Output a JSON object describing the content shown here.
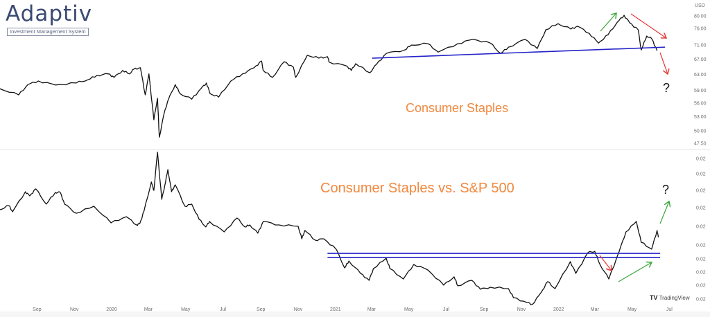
{
  "brand": {
    "name": "Adaptiv",
    "tagline": "Investment Management System"
  },
  "watermark": "TradingView",
  "colors": {
    "price_line": "#111111",
    "support_line": "#2323c8",
    "title": "#f0883e",
    "arrow_up": "#3aa63a",
    "arrow_down": "#e53935",
    "axis_text": "#6b6b6b"
  },
  "chart_data": [
    {
      "type": "line",
      "title": "Consumer Staples",
      "currency_label": "USD",
      "y_scale": "log",
      "ylim": [
        47.5,
        80.0
      ],
      "y_ticks": [
        80.0,
        76.0,
        71.0,
        67.0,
        63.0,
        59.0,
        56.0,
        53.0,
        50.0,
        47.5
      ],
      "y_tick_labels": [
        "80.00",
        "76.00",
        "71.00",
        "67.00",
        "63.00",
        "59.00",
        "56.00",
        "53.00",
        "50.00",
        "47.50"
      ],
      "grid": false,
      "series": [
        {
          "x": [
            "2019-07-02",
            "2019-08-02",
            "2019-08-17",
            "2019-09-03",
            "2019-10-01",
            "2019-11-04",
            "2019-11-23",
            "2019-12-08",
            "2019-12-27",
            "2020-01-05",
            "2020-01-19",
            "2020-01-30",
            "2020-02-06",
            "2020-02-17",
            "2020-02-25",
            "2020-03-02",
            "2020-03-10",
            "2020-03-16",
            "2020-03-19",
            "2020-03-27",
            "2020-04-03",
            "2020-04-14",
            "2020-04-22",
            "2020-05-11",
            "2020-05-26",
            "2020-06-04",
            "2020-06-10",
            "2020-06-24",
            "2020-07-14",
            "2020-08-02",
            "2020-08-21",
            "2020-09-02",
            "2020-09-05",
            "2020-09-20",
            "2020-10-09",
            "2020-10-24",
            "2020-10-28",
            "2020-11-16",
            "2020-12-05",
            "2020-12-19",
            "2020-12-22",
            "2021-01-19",
            "2021-01-27",
            "2021-02-03",
            "2021-02-26",
            "2021-03-09",
            "2021-03-25",
            "2021-04-24",
            "2021-05-05",
            "2021-06-01",
            "2021-06-18",
            "2021-07-20",
            "2021-08-14",
            "2021-09-11",
            "2021-09-28",
            "2021-10-11",
            "2021-11-07",
            "2021-11-27",
            "2021-12-11",
            "2021-12-31",
            "2022-01-21",
            "2022-02-01",
            "2022-02-20",
            "2022-03-07",
            "2022-03-23",
            "2022-04-07",
            "2022-04-18",
            "2022-04-27",
            "2022-05-11",
            "2022-05-16",
            "2022-05-25",
            "2022-06-02",
            "2022-06-11"
          ],
          "values": [
            59.4,
            57.9,
            60.4,
            61.3,
            60.3,
            60.8,
            61.6,
            62.7,
            63.1,
            62.2,
            64.0,
            63.1,
            64.3,
            64.7,
            57.9,
            63.1,
            52.3,
            57.1,
            48.7,
            53.8,
            56.9,
            60.4,
            58.2,
            56.9,
            59.4,
            60.8,
            58.2,
            57.4,
            61.3,
            63.1,
            64.7,
            66.5,
            64.0,
            62.2,
            66.3,
            64.9,
            62.2,
            68.1,
            67.3,
            67.7,
            66.2,
            65.2,
            64.0,
            65.8,
            63.4,
            65.6,
            68.6,
            69.6,
            71.0,
            71.4,
            69.0,
            71.4,
            72.7,
            71.6,
            68.6,
            70.4,
            72.7,
            70.0,
            75.6,
            77.5,
            75.8,
            76.7,
            74.5,
            71.6,
            74.1,
            78.0,
            80.2,
            77.8,
            75.6,
            69.6,
            73.7,
            72.9,
            69.4
          ]
        }
      ],
      "support_line": {
        "x": [
          "2021-03-02",
          "2022-06-24"
        ],
        "values": [
          67.3,
          70.4
        ]
      },
      "annotations": [
        "?"
      ]
    },
    {
      "type": "line",
      "title": "Consumer Staples vs. S&P 500",
      "y_scale": "linear",
      "ylim": [
        0.0155,
        0.024
      ],
      "y_ticks": [
        0.024,
        0.02308,
        0.02207,
        0.02103,
        0.0199,
        0.01877,
        0.01793,
        0.01713,
        0.01634,
        0.0155
      ],
      "y_tick_labels": [
        "0.02",
        "0.02",
        "0.02",
        "0.02",
        "0.02",
        "0.02",
        "0.02",
        "0.02",
        "0.02",
        "0.02"
      ],
      "grid": false,
      "x_tick_labels": [
        "Sep",
        "Nov",
        "2020",
        "Mar",
        "May",
        "Jul",
        "Sep",
        "Nov",
        "2021",
        "Mar",
        "May",
        "Jul",
        "Sep",
        "Nov",
        "2022",
        "Mar",
        "May",
        "Jul"
      ],
      "x_ticks": [
        "2019-09-01",
        "2019-11-01",
        "2020-01-01",
        "2020-03-01",
        "2020-05-01",
        "2020-07-01",
        "2020-09-01",
        "2020-11-01",
        "2021-01-01",
        "2021-03-01",
        "2021-05-01",
        "2021-07-01",
        "2021-09-01",
        "2021-11-01",
        "2022-01-01",
        "2022-03-01",
        "2022-05-01",
        "2022-07-01"
      ],
      "series": [
        {
          "x": [
            "2019-07-02",
            "2019-07-17",
            "2019-07-23",
            "2019-08-13",
            "2019-08-20",
            "2019-08-30",
            "2019-09-16",
            "2019-10-01",
            "2019-10-09",
            "2019-10-16",
            "2019-11-04",
            "2019-12-03",
            "2019-12-31",
            "2020-01-25",
            "2020-02-11",
            "2020-02-16",
            "2020-02-23",
            "2020-03-06",
            "2020-03-10",
            "2020-03-16",
            "2020-03-23",
            "2020-03-28",
            "2020-04-02",
            "2020-04-08",
            "2020-04-14",
            "2020-04-30",
            "2020-05-11",
            "2020-05-23",
            "2020-06-03",
            "2020-06-09",
            "2020-07-03",
            "2020-07-24",
            "2020-08-06",
            "2020-08-14",
            "2020-08-27",
            "2020-09-05",
            "2020-10-01",
            "2020-11-01",
            "2020-11-07",
            "2020-11-12",
            "2020-11-29",
            "2020-12-13",
            "2021-01-02",
            "2021-01-16",
            "2021-01-23",
            "2021-02-11",
            "2021-02-25",
            "2021-03-04",
            "2021-03-25",
            "2021-03-31",
            "2021-04-22",
            "2021-05-09",
            "2021-06-01",
            "2021-06-27",
            "2021-07-14",
            "2021-07-20",
            "2021-08-12",
            "2021-08-26",
            "2021-09-11",
            "2021-10-11",
            "2021-10-19",
            "2021-11-10",
            "2021-11-19",
            "2021-12-03",
            "2021-12-14",
            "2021-12-26",
            "2022-01-20",
            "2022-01-29",
            "2022-02-18",
            "2022-03-01",
            "2022-03-09",
            "2022-03-24",
            "2022-04-10",
            "2022-04-21",
            "2022-05-08",
            "2022-05-16",
            "2022-06-02",
            "2022-06-11",
            "2022-06-13"
          ],
          "values": [
            0.0209,
            0.02115,
            0.02078,
            0.02199,
            0.02174,
            0.02216,
            0.02124,
            0.02195,
            0.02195,
            0.02124,
            0.02069,
            0.02111,
            0.02011,
            0.02048,
            0.01998,
            0.02006,
            0.02082,
            0.02258,
            0.02207,
            0.02438,
            0.02153,
            0.02237,
            0.02333,
            0.02199,
            0.02241,
            0.02111,
            0.02124,
            0.02032,
            0.01986,
            0.02019,
            0.01956,
            0.0204,
            0.01986,
            0.01998,
            0.01948,
            0.02019,
            0.01998,
            0.0199,
            0.01914,
            0.01965,
            0.01906,
            0.01914,
            0.01852,
            0.01738,
            0.0178,
            0.01705,
            0.01663,
            0.01734,
            0.01797,
            0.01734,
            0.01671,
            0.01759,
            0.01726,
            0.01634,
            0.01684,
            0.0163,
            0.01663,
            0.01609,
            0.01621,
            0.01613,
            0.01558,
            0.01529,
            0.01517,
            0.01588,
            0.01655,
            0.01613,
            0.01776,
            0.01705,
            0.01831,
            0.01839,
            0.01763,
            0.01671,
            0.01839,
            0.01956,
            0.02019,
            0.01893,
            0.01852,
            0.01965,
            0.01923
          ]
        }
      ],
      "support_lines": [
        {
          "x": [
            "2020-12-19",
            "2022-06-16"
          ],
          "values": [
            0.01826,
            0.01826
          ]
        },
        {
          "x": [
            "2020-12-19",
            "2022-06-16"
          ],
          "values": [
            0.01801,
            0.01801
          ]
        }
      ],
      "annotations": [
        "?"
      ]
    }
  ]
}
